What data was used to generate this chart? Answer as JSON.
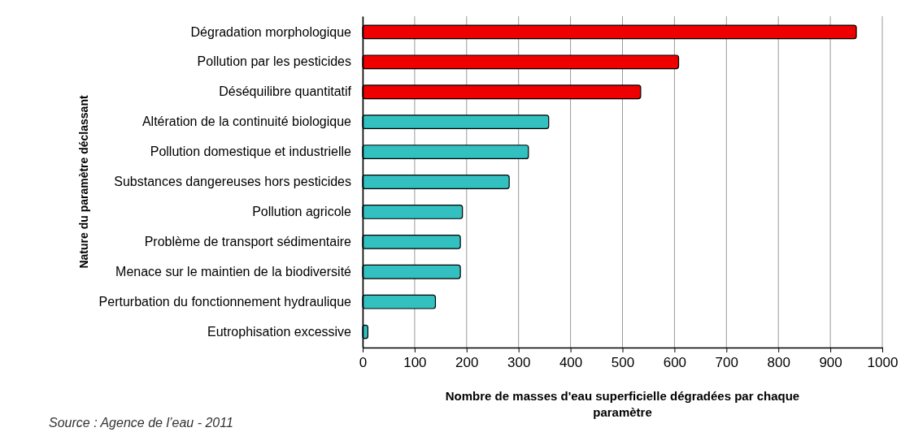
{
  "chart_data": {
    "type": "bar",
    "orientation": "horizontal",
    "categories": [
      "Dégradation morphologique",
      "Pollution par les pesticides",
      "Déséquilibre quantitatif",
      "Altération de la continuité biologique",
      "Pollution domestique et industrielle",
      "Substances dangereuses hors pesticides",
      "Pollution agricole",
      "Problème de transport sédimentaire",
      "Menace sur le maintien de la biodiversité",
      "Perturbation du fonctionnement hydraulique",
      "Eutrophisation excessive"
    ],
    "values": [
      950,
      608,
      535,
      358,
      319,
      282,
      192,
      188,
      188,
      140,
      10
    ],
    "colors": [
      "#ee0000",
      "#ee0000",
      "#ee0000",
      "#33c0c0",
      "#33c0c0",
      "#33c0c0",
      "#33c0c0",
      "#33c0c0",
      "#33c0c0",
      "#33c0c0",
      "#33c0c0"
    ],
    "xlim": [
      0,
      1000
    ],
    "xticks": [
      0,
      100,
      200,
      300,
      400,
      500,
      600,
      700,
      800,
      900,
      1000
    ],
    "grid": "x",
    "xlabel": "Nombre de masses d'eau superficielle dégradées par chaque paramètre",
    "ylabel": "Nature du paramètre déclassant",
    "annotations": [
      "Source : Agence de l’eau - 2011"
    ]
  }
}
